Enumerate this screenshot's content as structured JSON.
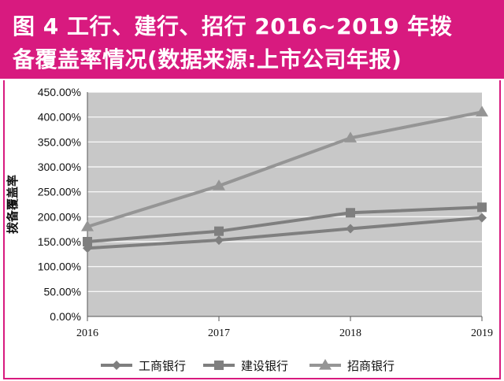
{
  "figure": {
    "title_line1": "图 4  工行、建行、招行 2016~2019 年拨",
    "title_line2": "备覆盖率情况(数据来源:上市公司年报)"
  },
  "colors": {
    "banner": "#d81a7f",
    "plot_bg": "#c8c8c8",
    "grid": "#ffffff",
    "series_primary": "#7f7f7f",
    "series_alt": "#959595"
  },
  "chart_data": {
    "type": "line",
    "title": "",
    "xlabel": "",
    "ylabel": "拨备覆盖率",
    "categories": [
      "2016",
      "2017",
      "2018",
      "2019"
    ],
    "ylim": [
      0,
      450
    ],
    "yticks": [
      0,
      50,
      100,
      150,
      200,
      250,
      300,
      350,
      400,
      450
    ],
    "ytick_labels": [
      "0.00%",
      "50.00%",
      "100.00%",
      "150.00%",
      "200.00%",
      "250.00%",
      "300.00%",
      "350.00%",
      "400.00%",
      "450.00%"
    ],
    "grid": true,
    "legend_position": "bottom",
    "series": [
      {
        "name": "工商银行",
        "marker": "diamond",
        "values": [
          137,
          153,
          176,
          198
        ]
      },
      {
        "name": "建设银行",
        "marker": "square",
        "values": [
          150,
          171,
          208,
          219
        ]
      },
      {
        "name": "招商银行",
        "marker": "triangle",
        "values": [
          180,
          262,
          358,
          410
        ]
      }
    ]
  }
}
